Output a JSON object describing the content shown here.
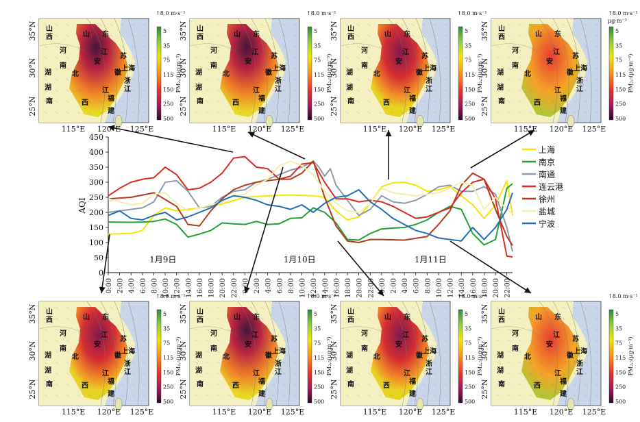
{
  "maps": {
    "lat_labels": [
      "35°N",
      "30°N",
      "25°N"
    ],
    "lon_labels": [
      "115°E",
      "120°E",
      "125°E"
    ],
    "wind_ref": "↑8.0 m·s⁻¹",
    "unit": "μg·m⁻³",
    "colorbar_label": "PM₂.₅(μg·m⁻³)",
    "colorbar_ticks": [
      "5",
      "35",
      "75",
      "115",
      "150",
      "250",
      "500"
    ],
    "colorbar_colors": [
      "#2b8a3e",
      "#8fcf3f",
      "#f2e600",
      "#f7941d",
      "#e8322b",
      "#9e1a5e",
      "#2a0a2a"
    ],
    "provinces": [
      {
        "name": "山",
        "level": "top"
      },
      {
        "name": "西",
        "level": "top"
      },
      {
        "name": "河",
        "level": "mid"
      },
      {
        "name": "南",
        "level": "mid"
      },
      {
        "name": "湖",
        "level": "low"
      },
      {
        "name": "北",
        "level": "low"
      },
      {
        "name": "湖",
        "level": "low2"
      },
      {
        "name": "南",
        "level": "low2"
      },
      {
        "name": "山",
        "level": "sd"
      },
      {
        "name": "东",
        "level": "sd"
      },
      {
        "name": "江",
        "level": "js"
      },
      {
        "name": "苏",
        "level": "js"
      },
      {
        "name": "安",
        "level": "ah"
      },
      {
        "name": "徽",
        "level": "ah"
      },
      {
        "name": "上海",
        "level": "sh"
      },
      {
        "name": "浙",
        "level": "zj"
      },
      {
        "name": "江",
        "level": "zj"
      },
      {
        "name": "江",
        "level": "jx"
      },
      {
        "name": "西",
        "level": "jx"
      },
      {
        "name": "福",
        "level": "fj"
      },
      {
        "name": "建",
        "level": "fj"
      }
    ]
  },
  "chart_data": {
    "type": "line",
    "ylabel": "AQI",
    "ylim": [
      0,
      450
    ],
    "yticks": [
      0,
      50,
      100,
      150,
      200,
      250,
      300,
      350,
      400,
      450
    ],
    "x_hours_start": 0,
    "x_hours_end": 71,
    "xtick_labels": [
      "0:00",
      "2:00",
      "4:00",
      "6:00",
      "8:00",
      "10:00",
      "12:00",
      "14:00",
      "16:00",
      "18:00",
      "20:00",
      "22:00",
      "0:00",
      "2:00",
      "4:00",
      "6:00",
      "8:00",
      "10:00",
      "12:00",
      "14:00",
      "16:00",
      "18:00",
      "20:00",
      "22:00",
      "0:00",
      "2:00",
      "4:00",
      "6:00",
      "8:00",
      "10:00",
      "12:00",
      "14:00",
      "16:00",
      "18:00",
      "20:00",
      "22:00"
    ],
    "day_labels": [
      "1月9日",
      "1月10日",
      "1月11日"
    ],
    "series": [
      {
        "name": "上海",
        "color": "#f5e600",
        "points": [
          [
            0,
            128
          ],
          [
            4,
            130
          ],
          [
            6,
            140
          ],
          [
            8,
            190
          ],
          [
            10,
            215
          ],
          [
            12,
            205
          ],
          [
            16,
            215
          ],
          [
            20,
            228
          ],
          [
            24,
            250
          ],
          [
            28,
            255
          ],
          [
            32,
            258
          ],
          [
            36,
            255
          ],
          [
            38,
            250
          ],
          [
            40,
            205
          ],
          [
            42,
            175
          ],
          [
            44,
            185
          ],
          [
            46,
            230
          ],
          [
            48,
            285
          ],
          [
            50,
            298
          ],
          [
            52,
            300
          ],
          [
            54,
            290
          ],
          [
            56,
            270
          ],
          [
            58,
            275
          ],
          [
            60,
            285
          ],
          [
            62,
            255
          ],
          [
            64,
            225
          ],
          [
            66,
            180
          ],
          [
            68,
            225
          ],
          [
            70,
            305
          ],
          [
            71,
            190
          ]
        ]
      },
      {
        "name": "南京",
        "color": "#22a033",
        "points": [
          [
            0,
            168
          ],
          [
            4,
            167
          ],
          [
            6,
            168
          ],
          [
            8,
            170
          ],
          [
            10,
            178
          ],
          [
            12,
            160
          ],
          [
            14,
            118
          ],
          [
            16,
            128
          ],
          [
            18,
            140
          ],
          [
            20,
            165
          ],
          [
            22,
            162
          ],
          [
            24,
            160
          ],
          [
            26,
            170
          ],
          [
            28,
            160
          ],
          [
            30,
            162
          ],
          [
            32,
            180
          ],
          [
            34,
            182
          ],
          [
            36,
            215
          ],
          [
            38,
            200
          ],
          [
            40,
            165
          ],
          [
            42,
            110
          ],
          [
            44,
            108
          ],
          [
            46,
            130
          ],
          [
            48,
            145
          ],
          [
            50,
            148
          ],
          [
            52,
            150
          ],
          [
            54,
            160
          ],
          [
            56,
            175
          ],
          [
            58,
            200
          ],
          [
            60,
            220
          ],
          [
            62,
            210
          ],
          [
            64,
            130
          ],
          [
            66,
            92
          ],
          [
            68,
            110
          ],
          [
            70,
            280
          ],
          [
            71,
            295
          ]
        ]
      },
      {
        "name": "南通",
        "color": "#8a9aa8",
        "points": [
          [
            0,
            200
          ],
          [
            4,
            210
          ],
          [
            6,
            215
          ],
          [
            8,
            235
          ],
          [
            10,
            300
          ],
          [
            12,
            305
          ],
          [
            14,
            270
          ],
          [
            16,
            215
          ],
          [
            18,
            220
          ],
          [
            20,
            250
          ],
          [
            22,
            270
          ],
          [
            24,
            275
          ],
          [
            26,
            300
          ],
          [
            28,
            310
          ],
          [
            30,
            325
          ],
          [
            32,
            340
          ],
          [
            34,
            350
          ],
          [
            36,
            370
          ],
          [
            37,
            350
          ],
          [
            38,
            320
          ],
          [
            39,
            345
          ],
          [
            40,
            290
          ],
          [
            42,
            240
          ],
          [
            44,
            190
          ],
          [
            46,
            210
          ],
          [
            48,
            255
          ],
          [
            50,
            235
          ],
          [
            52,
            230
          ],
          [
            54,
            240
          ],
          [
            56,
            260
          ],
          [
            58,
            285
          ],
          [
            60,
            290
          ],
          [
            62,
            270
          ],
          [
            64,
            270
          ],
          [
            66,
            285
          ],
          [
            68,
            260
          ],
          [
            70,
            150
          ],
          [
            71,
            70
          ]
        ]
      },
      {
        "name": "连云港",
        "color": "#d92b1e",
        "points": [
          [
            0,
            255
          ],
          [
            2,
            280
          ],
          [
            4,
            300
          ],
          [
            6,
            310
          ],
          [
            8,
            315
          ],
          [
            10,
            350
          ],
          [
            12,
            325
          ],
          [
            14,
            275
          ],
          [
            16,
            280
          ],
          [
            18,
            300
          ],
          [
            20,
            330
          ],
          [
            22,
            380
          ],
          [
            24,
            385
          ],
          [
            26,
            350
          ],
          [
            28,
            345
          ],
          [
            30,
            310
          ],
          [
            32,
            320
          ],
          [
            34,
            360
          ],
          [
            36,
            365
          ],
          [
            38,
            300
          ],
          [
            40,
            245
          ],
          [
            42,
            245
          ],
          [
            44,
            235
          ],
          [
            46,
            240
          ],
          [
            48,
            235
          ],
          [
            50,
            220
          ],
          [
            52,
            200
          ],
          [
            54,
            180
          ],
          [
            56,
            185
          ],
          [
            58,
            200
          ],
          [
            60,
            215
          ],
          [
            62,
            265
          ],
          [
            64,
            300
          ],
          [
            66,
            310
          ],
          [
            68,
            245
          ],
          [
            70,
            55
          ],
          [
            71,
            52
          ]
        ]
      },
      {
        "name": "徐州",
        "color": "#b23a1e",
        "points": [
          [
            0,
            245
          ],
          [
            4,
            250
          ],
          [
            8,
            265
          ],
          [
            12,
            220
          ],
          [
            14,
            160
          ],
          [
            16,
            155
          ],
          [
            18,
            205
          ],
          [
            20,
            245
          ],
          [
            22,
            275
          ],
          [
            24,
            290
          ],
          [
            26,
            300
          ],
          [
            28,
            305
          ],
          [
            30,
            310
          ],
          [
            32,
            310
          ],
          [
            34,
            330
          ],
          [
            36,
            370
          ],
          [
            38,
            250
          ],
          [
            40,
            155
          ],
          [
            42,
            105
          ],
          [
            44,
            100
          ],
          [
            46,
            110
          ],
          [
            48,
            110
          ],
          [
            52,
            108
          ],
          [
            56,
            120
          ],
          [
            58,
            160
          ],
          [
            60,
            205
          ],
          [
            62,
            290
          ],
          [
            64,
            330
          ],
          [
            66,
            310
          ],
          [
            68,
            210
          ],
          [
            70,
            120
          ],
          [
            71,
            90
          ]
        ]
      },
      {
        "name": "盐城",
        "color": "#f6eeb0",
        "points": [
          [
            0,
            245
          ],
          [
            4,
            225
          ],
          [
            6,
            230
          ],
          [
            8,
            260
          ],
          [
            10,
            265
          ],
          [
            12,
            230
          ],
          [
            14,
            205
          ],
          [
            16,
            215
          ],
          [
            18,
            225
          ],
          [
            20,
            235
          ],
          [
            22,
            255
          ],
          [
            24,
            260
          ],
          [
            26,
            290
          ],
          [
            28,
            310
          ],
          [
            30,
            355
          ],
          [
            32,
            370
          ],
          [
            34,
            355
          ],
          [
            36,
            325
          ],
          [
            38,
            270
          ],
          [
            40,
            230
          ],
          [
            42,
            205
          ],
          [
            44,
            200
          ],
          [
            46,
            230
          ],
          [
            48,
            280
          ],
          [
            50,
            265
          ],
          [
            54,
            255
          ],
          [
            58,
            265
          ],
          [
            60,
            280
          ],
          [
            62,
            300
          ],
          [
            64,
            290
          ],
          [
            66,
            210
          ],
          [
            68,
            250
          ],
          [
            70,
            210
          ],
          [
            71,
            195
          ]
        ]
      },
      {
        "name": "宁波",
        "color": "#1f6fb5",
        "points": [
          [
            0,
            190
          ],
          [
            2,
            205
          ],
          [
            4,
            180
          ],
          [
            6,
            175
          ],
          [
            8,
            190
          ],
          [
            10,
            200
          ],
          [
            12,
            175
          ],
          [
            14,
            185
          ],
          [
            16,
            200
          ],
          [
            18,
            215
          ],
          [
            20,
            240
          ],
          [
            22,
            255
          ],
          [
            24,
            250
          ],
          [
            26,
            240
          ],
          [
            28,
            225
          ],
          [
            30,
            220
          ],
          [
            32,
            210
          ],
          [
            34,
            225
          ],
          [
            36,
            200
          ],
          [
            38,
            230
          ],
          [
            40,
            250
          ],
          [
            42,
            255
          ],
          [
            44,
            275
          ],
          [
            46,
            235
          ],
          [
            48,
            210
          ],
          [
            50,
            180
          ],
          [
            52,
            160
          ],
          [
            54,
            140
          ],
          [
            56,
            130
          ],
          [
            58,
            115
          ],
          [
            60,
            110
          ],
          [
            62,
            105
          ],
          [
            64,
            150
          ],
          [
            66,
            110
          ],
          [
            68,
            150
          ],
          [
            70,
            210
          ],
          [
            71,
            265
          ]
        ]
      }
    ]
  }
}
